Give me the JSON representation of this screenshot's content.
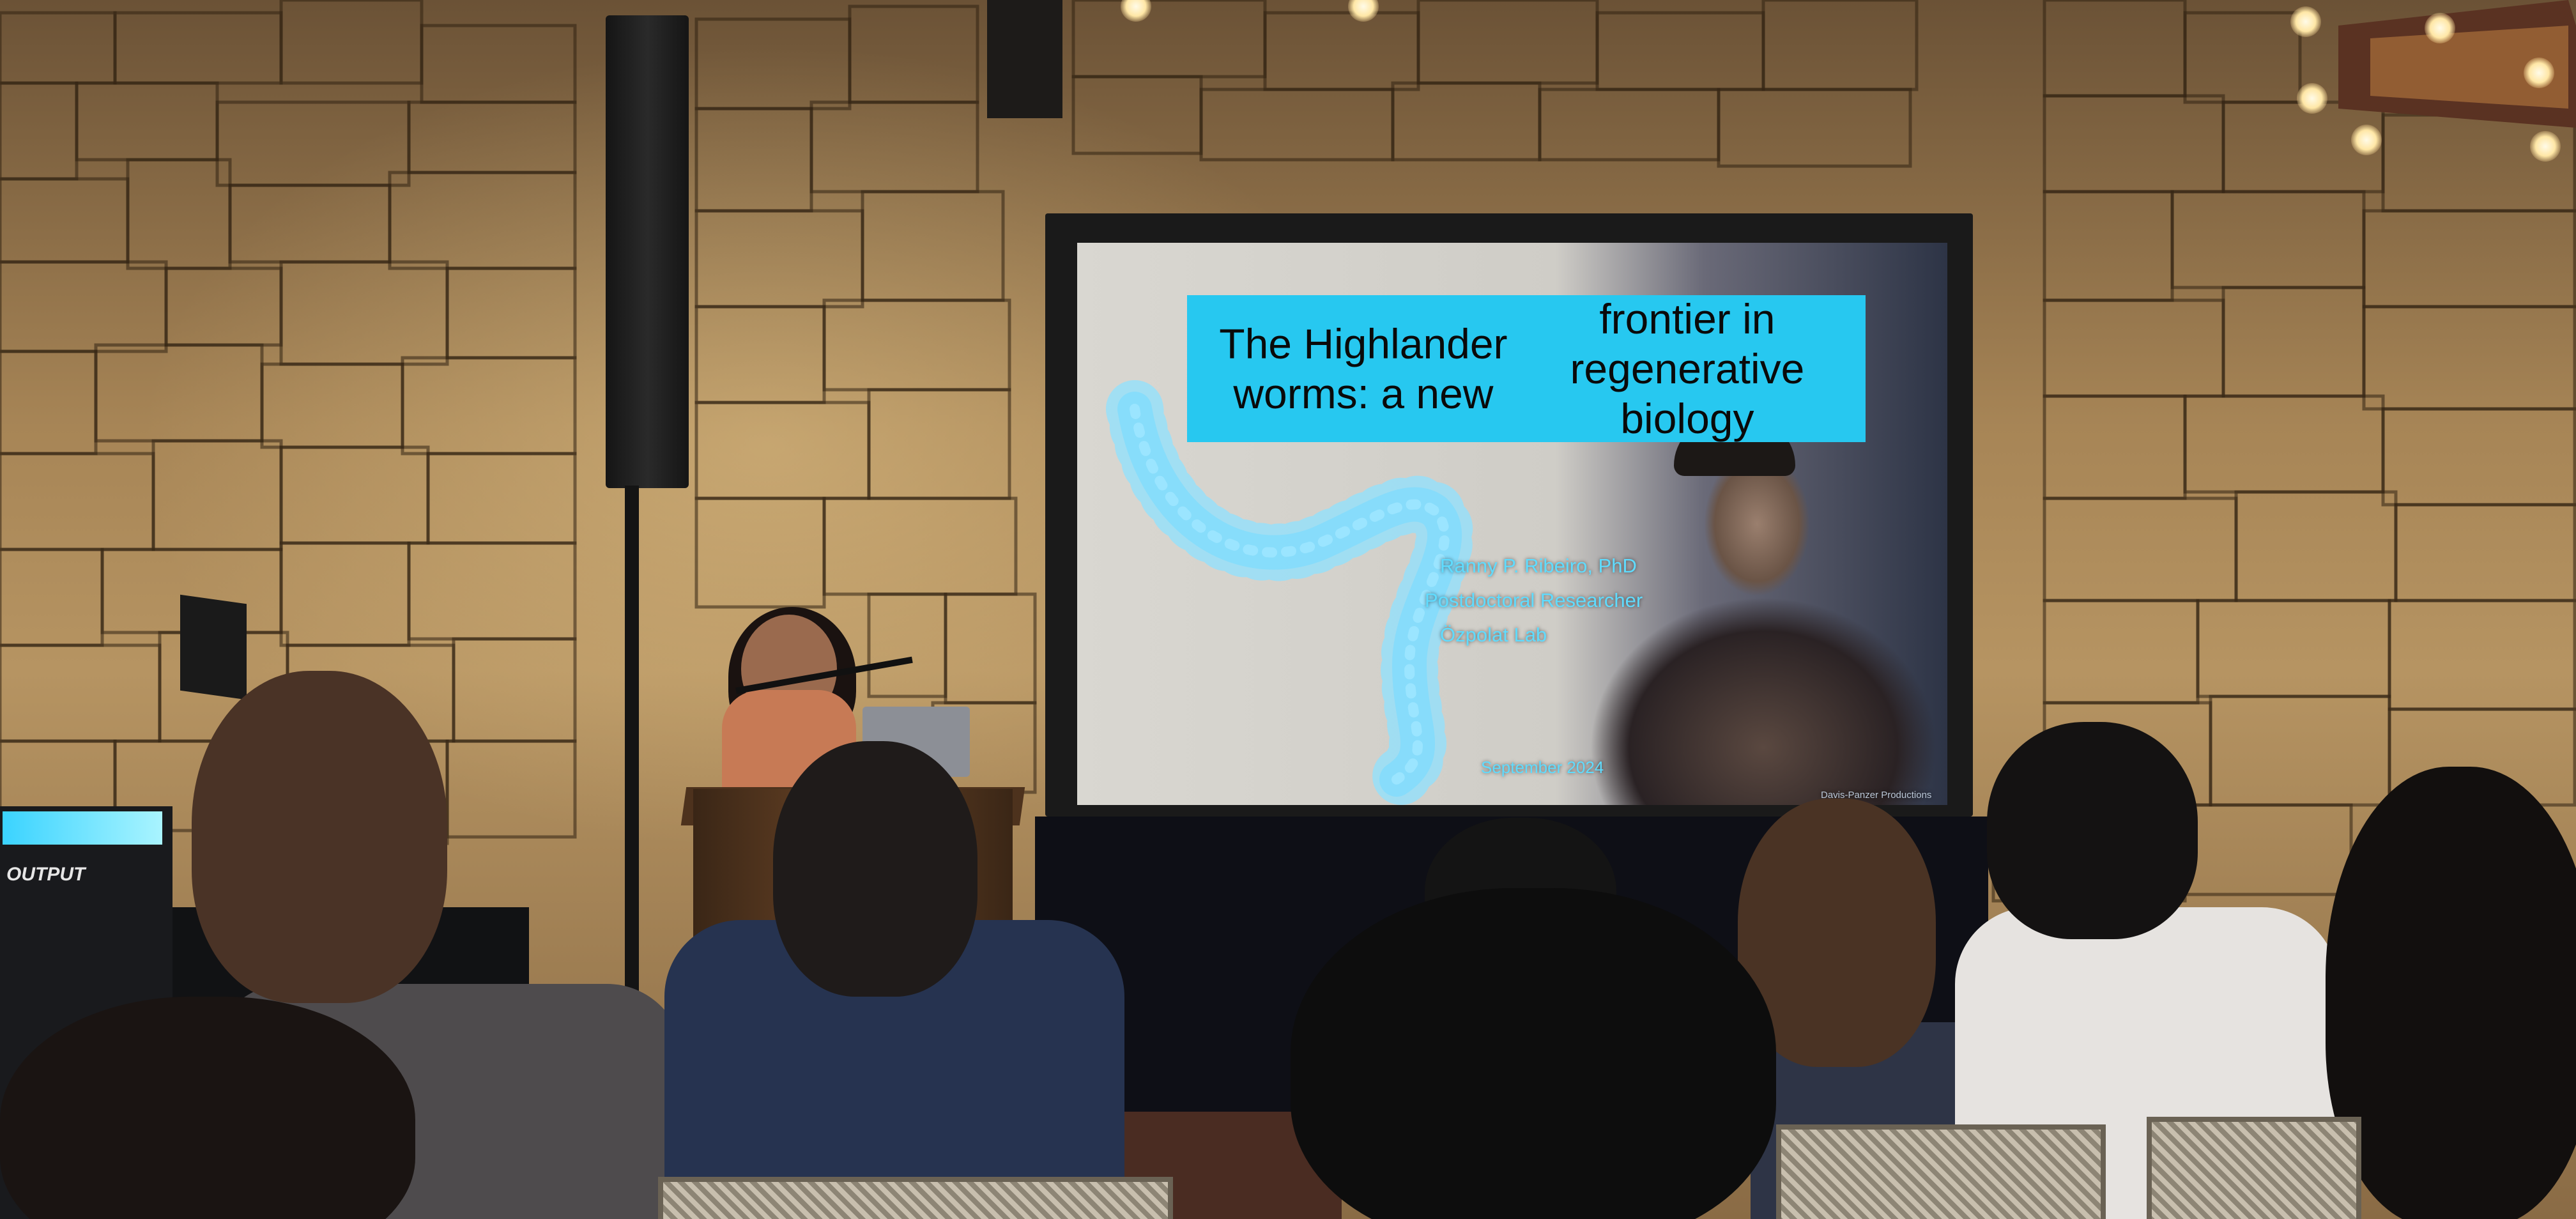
{
  "photo": {
    "subject": "Conference talk: speaker at podium beside projection screen, audience in foreground",
    "slide": {
      "title": "The Highlander worms: a new frontier in regenerative biology",
      "title_line1": "The Highlander worms: a new",
      "title_line2": "frontier in regenerative biology",
      "presenter_name": "Ranny P. Ribeiro, PhD",
      "presenter_role": "Postdoctoral Researcher",
      "presenter_lab": "Özpolat Lab",
      "date": "September 2024",
      "credit": "Davis-Panzer Productions",
      "title_bg_color": "#27c8f0",
      "text_color": "#5fdcff"
    },
    "equipment_label": "OUTPUT"
  }
}
